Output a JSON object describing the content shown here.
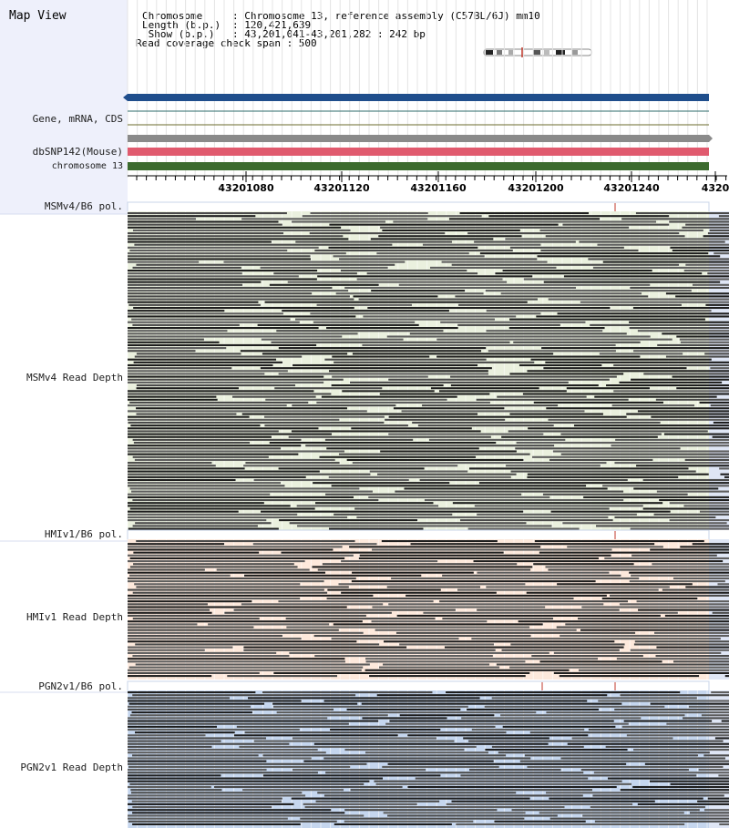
{
  "title": "Map View",
  "info": {
    "chromosome_key": "Chromosome    ",
    "chromosome_val": ": Chromosome 13, reference assembly (C57BL/6J) mm10",
    "length_key": "Length (b.p.)",
    "length_val": ": 120,421,639",
    "show_key": " Show (b.p.)",
    "show_val": ": 43,201,041-43,201,282 : 242 bp",
    "coverage": "Read coverage check span : 500"
  },
  "tracks": {
    "gene": "Gene, mRNA, CDS",
    "dbsnp": "dbSNP142(Mouse)",
    "chrom": "chromosome 13"
  },
  "axis": {
    "ticks": [
      "43201080",
      "43201120",
      "43201160",
      "43201200",
      "43201240",
      "4320"
    ]
  },
  "panels": [
    {
      "pol_label": "MSMv4/B6 pol.",
      "depth_label": "MSMv4 Read Depth"
    },
    {
      "pol_label": "HMIv1/B6 pol.",
      "depth_label": "HMIv1 Read Depth"
    },
    {
      "pol_label": "PGN2v1/B6 pol.",
      "depth_label": "PGN2v1 Read Depth"
    }
  ],
  "colors": {
    "gene_bar": "#1f4e8c",
    "dbsnp_bar": "#e05a6e",
    "chrom_bar": "#3c6b2e",
    "msm_bg": "#eaf0de",
    "hmi_bg": "#fde9dc",
    "pgn_bg": "#c5d6ee",
    "left_bg": "#eef0fb",
    "read_dark": "#3a3a3a",
    "read_mid": "#666666",
    "snp_mark": "#c0392b"
  }
}
